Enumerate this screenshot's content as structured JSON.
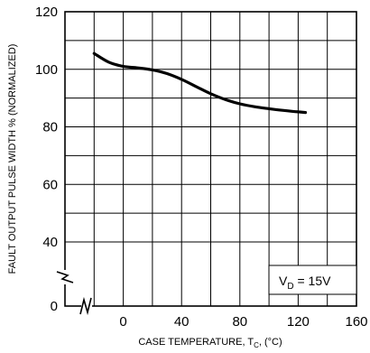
{
  "chart_data": {
    "type": "line",
    "title": "",
    "xlabel": "CASE TEMPERATURE, T",
    "xlabel_sub": "C",
    "xlabel_unit": ", (°C)",
    "ylabel": "FAULT OUTPUT PULSE WIDTH % (NORMALIZED)",
    "x_ticks": [
      "0",
      "40",
      "80",
      "120",
      "160"
    ],
    "x_tick_values": [
      0,
      40,
      80,
      120,
      160
    ],
    "y_ticks": [
      "0",
      "40",
      "60",
      "80",
      "100",
      "120"
    ],
    "y_tick_values": [
      0,
      40,
      60,
      80,
      100,
      120
    ],
    "xlim": [
      -40,
      160
    ],
    "ylim": [
      0,
      120
    ],
    "axis_break": true,
    "grid": true,
    "annotation": {
      "main": "V",
      "sub": "D",
      "rest": " = 15V",
      "placement": "bottom-right"
    },
    "series": [
      {
        "x": [
          -20,
          -10,
          0,
          10,
          20,
          30,
          40,
          50,
          60,
          70,
          80,
          90,
          100,
          110,
          120,
          125
        ],
        "y": [
          105.5,
          102.5,
          101,
          100.5,
          99.8,
          98.5,
          96.5,
          94,
          91.5,
          89.5,
          88,
          87,
          86.3,
          85.7,
          85.2,
          85
        ]
      }
    ]
  }
}
